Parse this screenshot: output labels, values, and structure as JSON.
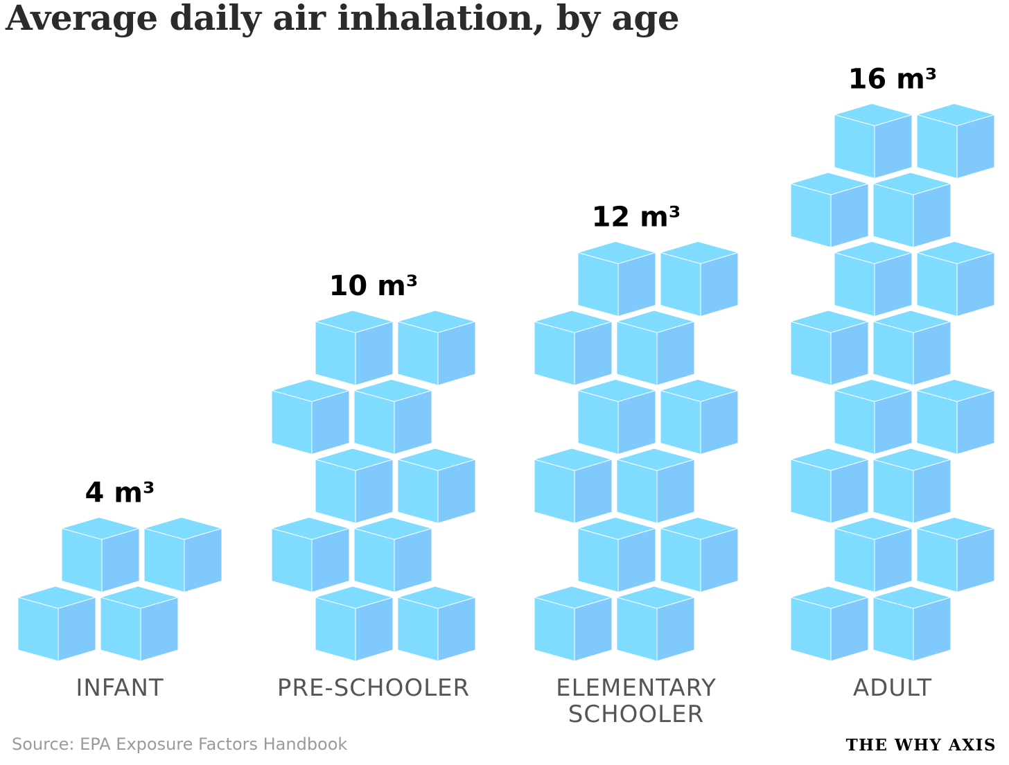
{
  "header": {
    "title": "Average daily air inhalation, by age"
  },
  "footer": {
    "source": "Source: EPA Exposure Factors Handbook",
    "brand": "THE WHY AXIS"
  },
  "colors": {
    "cube_light": "#80dcff",
    "cube_shade": "#7fc9fc",
    "cube_top": "#80dcff",
    "edge": "#ffffff"
  },
  "chart_data": {
    "type": "bar",
    "title": "Average daily air inhalation, by age",
    "unit": "m³",
    "categories": [
      {
        "label": "INFANT",
        "label_lines": [
          "INFANT"
        ],
        "value": 4,
        "value_label": "4 m³"
      },
      {
        "label": "PRE-SCHOOLER",
        "label_lines": [
          "PRE-SCHOOLER"
        ],
        "value": 10,
        "value_label": "10 m³"
      },
      {
        "label": "ELEMENTARY SCHOOLER",
        "label_lines": [
          "ELEMENTARY",
          "SCHOOLER"
        ],
        "value": 12,
        "value_label": "12 m³"
      },
      {
        "label": "ADULT",
        "label_lines": [
          "ADULT"
        ],
        "value": 16,
        "value_label": "16 m³"
      }
    ]
  }
}
